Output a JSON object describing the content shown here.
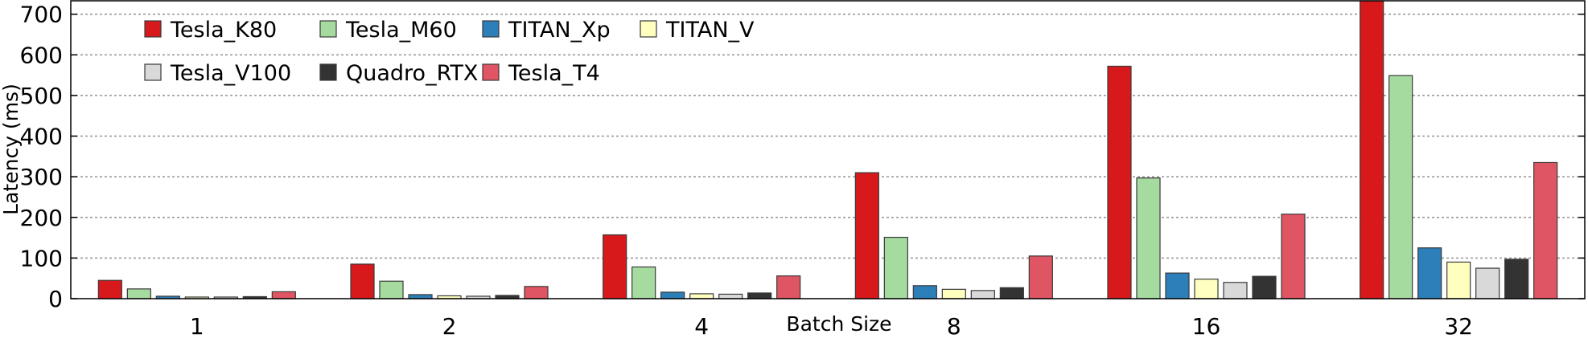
{
  "chart_data": {
    "type": "bar",
    "xlabel": "Batch Size",
    "ylabel": "Latency (ms)",
    "ylim": [
      0,
      735
    ],
    "yticks": [
      0,
      100,
      200,
      300,
      400,
      500,
      600,
      700
    ],
    "grid": "horizontal dotted",
    "legend": "top-left, 2 rows",
    "categories": [
      "1",
      "2",
      "4",
      "8",
      "16",
      "32"
    ],
    "series": [
      {
        "name": "Tesla_K80",
        "color": "#d7191c",
        "values": [
          45,
          85,
          157,
          310,
          572,
          735
        ]
      },
      {
        "name": "Tesla_M60",
        "color": "#a6dba0",
        "values": [
          24,
          43,
          78,
          151,
          297,
          549
        ]
      },
      {
        "name": "TITAN_Xp",
        "color": "#2c7fb8",
        "values": [
          6,
          10,
          16,
          32,
          63,
          125
        ]
      },
      {
        "name": "TITAN_V",
        "color": "#ffffbf",
        "values": [
          4,
          7,
          12,
          23,
          48,
          90
        ]
      },
      {
        "name": "Tesla_V100",
        "color": "#d9d9d9",
        "values": [
          4,
          6,
          11,
          20,
          40,
          75
        ]
      },
      {
        "name": "Quadro_RTX",
        "color": "#333333",
        "values": [
          5,
          8,
          14,
          27,
          55,
          97
        ]
      },
      {
        "name": "Tesla_T4",
        "color": "#e05563",
        "values": [
          17,
          30,
          56,
          105,
          208,
          335
        ]
      }
    ]
  }
}
